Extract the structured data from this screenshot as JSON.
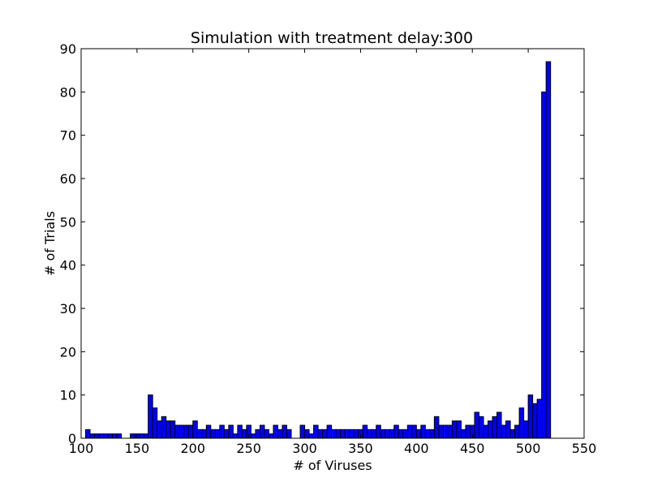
{
  "chart_data": {
    "type": "bar",
    "title": "Simulation with treatment delay:300",
    "xlabel": "# of Viruses",
    "ylabel": "# of Trials",
    "xlim": [
      100,
      550
    ],
    "ylim": [
      0,
      90
    ],
    "xticks": [
      "100",
      "150",
      "200",
      "250",
      "300",
      "350",
      "400",
      "450",
      "500",
      "550"
    ],
    "yticks": [
      "0",
      "10",
      "20",
      "30",
      "40",
      "50",
      "60",
      "70",
      "80",
      "90"
    ],
    "grid": false,
    "bar_color": "#0000ff",
    "edge_color": "#000000",
    "bin_start": 104,
    "bin_width": 4,
    "values": [
      2,
      1,
      1,
      1,
      1,
      1,
      1,
      1,
      0,
      0,
      1,
      1,
      1,
      1,
      10,
      7,
      4,
      5,
      4,
      4,
      3,
      3,
      3,
      3,
      4,
      2,
      2,
      3,
      2,
      2,
      3,
      2,
      3,
      1,
      3,
      2,
      3,
      1,
      2,
      3,
      2,
      1,
      3,
      2,
      3,
      2,
      0,
      0,
      3,
      2,
      1,
      3,
      2,
      2,
      3,
      2,
      2,
      2,
      2,
      2,
      2,
      2,
      3,
      2,
      2,
      3,
      2,
      2,
      2,
      3,
      2,
      2,
      3,
      3,
      2,
      3,
      2,
      2,
      5,
      3,
      3,
      3,
      4,
      4,
      2,
      3,
      3,
      6,
      5,
      3,
      4,
      5,
      6,
      3,
      4,
      2,
      3,
      7,
      4,
      10,
      8,
      9,
      80,
      87
    ]
  }
}
